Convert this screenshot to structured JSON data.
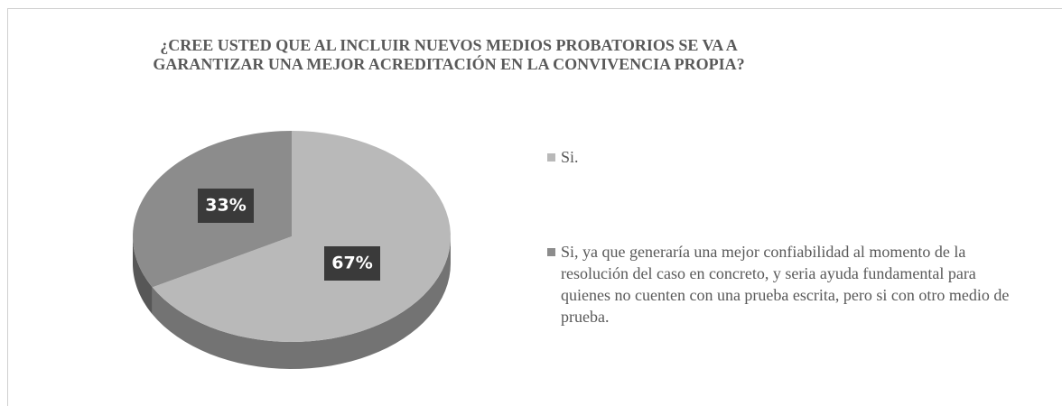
{
  "chart_data": {
    "type": "pie",
    "title": "¿CREE USTED QUE AL INCLUIR NUEVOS MEDIOS PROBATORIOS SE VA A GARANTIZAR UNA MEJOR ACREDITACIÓN EN LA CONVIVENCIA PROPIA?",
    "categories": [
      "Si.",
      "Si, ya que generaría una mejor confiabilidad al momento de la resolución del caso en concreto, y seria ayuda fundamental para quienes no cuenten con una prueba escrita, pero si con otro medio de prueba."
    ],
    "values": [
      67,
      33
    ],
    "value_labels": [
      "67%",
      "33%"
    ],
    "colors": [
      "#b9b9b9",
      "#8c8c8c"
    ],
    "legend": "right"
  }
}
